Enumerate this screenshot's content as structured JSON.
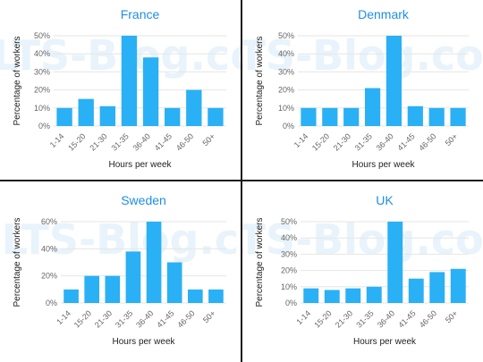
{
  "watermark": "IELTS-Blog.com",
  "colors": {
    "bar": "#2ab0f5",
    "title": "#1f8ee6",
    "divider": "#1a1a1a",
    "grid": "#e6e6e6"
  },
  "chart_data": [
    {
      "type": "bar",
      "title": "France",
      "xlabel": "Hours per week",
      "ylabel": "Percentage of workers",
      "categories": [
        "1-14",
        "15-20",
        "21-30",
        "31-35",
        "36-40",
        "41-45",
        "46-50",
        "50+"
      ],
      "values": [
        10,
        15,
        11,
        50,
        38,
        10,
        20,
        10
      ],
      "ylim": [
        0,
        50
      ],
      "yticks": [
        0,
        10,
        20,
        30,
        40,
        50
      ],
      "ytick_labels": [
        "0%",
        "10%",
        "20%",
        "30%",
        "40%",
        "50%"
      ],
      "grid": true
    },
    {
      "type": "bar",
      "title": "Denmark",
      "xlabel": "Hours per week",
      "ylabel": "Percentage of workers",
      "categories": [
        "1-14",
        "15-20",
        "21-30",
        "31-35",
        "36-40",
        "41-45",
        "46-50",
        "50+"
      ],
      "values": [
        10,
        10,
        10,
        21,
        50,
        11,
        10,
        10
      ],
      "ylim": [
        0,
        50
      ],
      "yticks": [
        0,
        10,
        20,
        30,
        40,
        50
      ],
      "ytick_labels": [
        "0%",
        "10%",
        "20%",
        "30%",
        "40%",
        "50%"
      ],
      "grid": true
    },
    {
      "type": "bar",
      "title": "Sweden",
      "xlabel": "Hours per week",
      "ylabel": "Percentage of workers",
      "categories": [
        "1-14",
        "15-20",
        "21-30",
        "31-35",
        "36-40",
        "41-45",
        "46-50",
        "50+"
      ],
      "values": [
        10,
        20,
        20,
        38,
        60,
        30,
        10,
        10
      ],
      "ylim": [
        0,
        60
      ],
      "yticks": [
        0,
        20,
        40,
        60
      ],
      "ytick_labels": [
        "0%",
        "20%",
        "40%",
        "60%"
      ],
      "grid": true
    },
    {
      "type": "bar",
      "title": "UK",
      "xlabel": "Hours per week",
      "ylabel": "Percentage of workers",
      "categories": [
        "1-14",
        "15-20",
        "21-30",
        "31-35",
        "36-40",
        "41-45",
        "46-50",
        "50+"
      ],
      "values": [
        9,
        8,
        9,
        10,
        50,
        15,
        19,
        21
      ],
      "ylim": [
        0,
        50
      ],
      "yticks": [
        0,
        10,
        20,
        30,
        40,
        50
      ],
      "ytick_labels": [
        "0%",
        "10%",
        "20%",
        "30%",
        "40%",
        "50%"
      ],
      "grid": true
    }
  ]
}
